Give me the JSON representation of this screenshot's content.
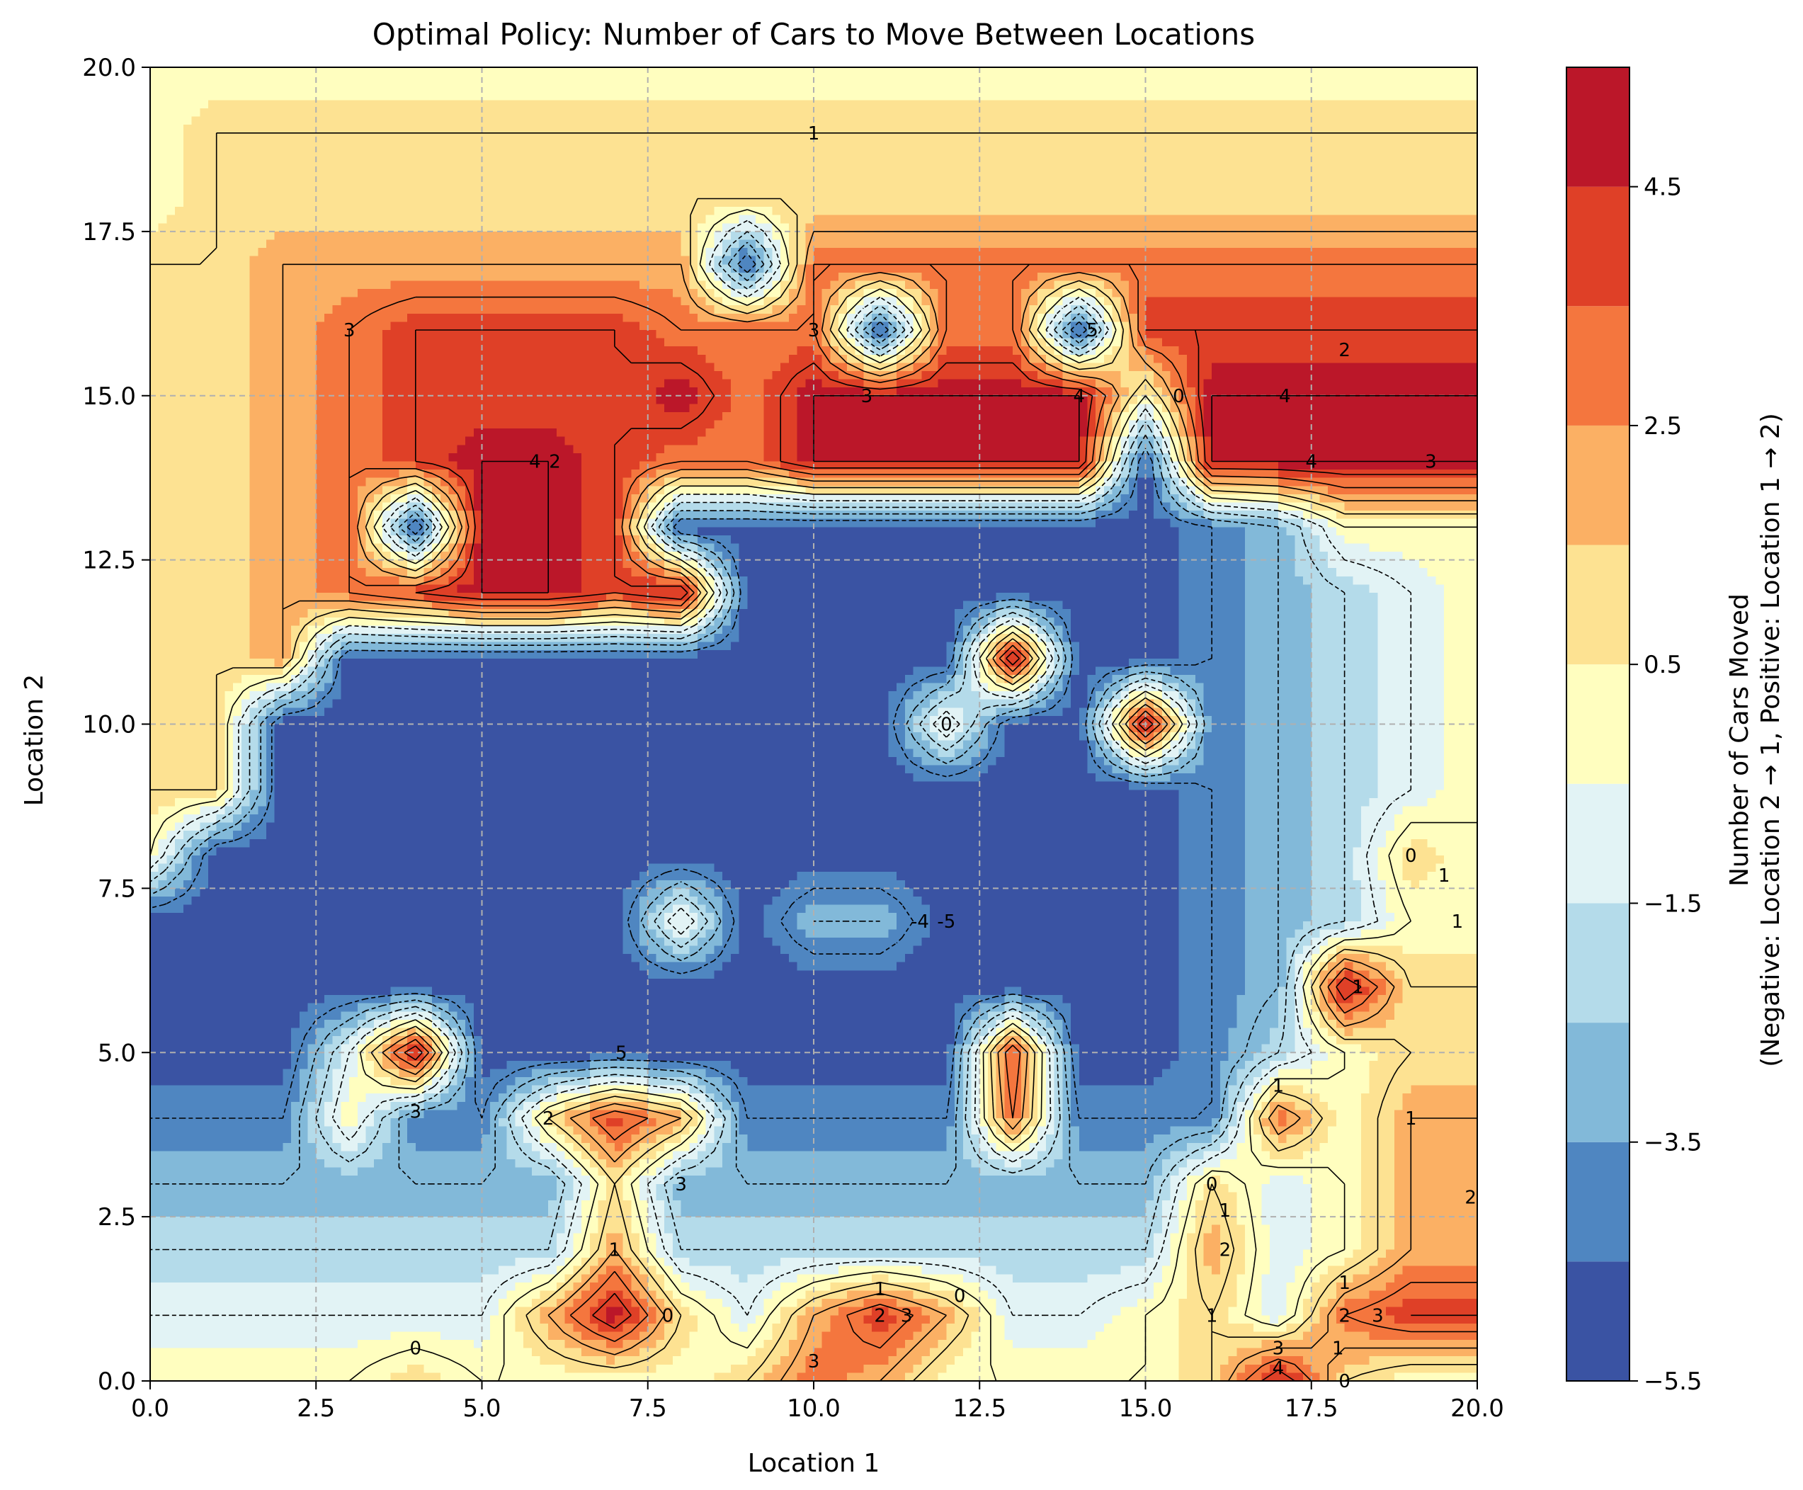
{
  "chart_data": {
    "type": "heatmap",
    "subtype": "filled-contour",
    "title": "Optimal Policy: Number of Cars to Move Between Locations",
    "xlabel": "Location 1",
    "ylabel": "Location 2",
    "xlim": [
      0,
      20
    ],
    "ylim": [
      0,
      20
    ],
    "x_ticks": [
      "0.0",
      "2.5",
      "5.0",
      "7.5",
      "10.0",
      "12.5",
      "15.0",
      "17.5",
      "20.0"
    ],
    "y_ticks": [
      "0.0",
      "2.5",
      "5.0",
      "7.5",
      "10.0",
      "12.5",
      "15.0",
      "17.5",
      "20.0"
    ],
    "grid": true,
    "grid_style": "dashed",
    "colormap": "RdYlBu_r",
    "levels": [
      -5.5,
      -4.5,
      -3.5,
      -2.5,
      -1.5,
      -0.5,
      0.5,
      1.5,
      2.5,
      3.5,
      4.5,
      5.5
    ],
    "level_colors": [
      "#3a53a3",
      "#4f86c1",
      "#82b9d9",
      "#b4dbea",
      "#e2f3f5",
      "#fffebf",
      "#fde292",
      "#fbb064",
      "#f4763e",
      "#df4027",
      "#bb1729"
    ],
    "colorbar": {
      "ticks": [
        "4.5",
        "2.5",
        "0.5",
        "−1.5",
        "−3.5",
        "−5.5"
      ],
      "tick_values": [
        4.5,
        2.5,
        0.5,
        -1.5,
        -3.5,
        -5.5
      ],
      "label_line1": "Number of Cars Moved",
      "label_line2": "(Negative: Location 2 → 1, Positive: Location 1 → 2)"
    },
    "grid_size": 21,
    "z": [
      [
        0,
        0,
        0,
        0,
        0,
        0,
        0,
        0,
        0,
        0,
        0,
        0,
        0,
        0,
        0,
        0,
        0,
        0,
        0,
        0,
        0
      ],
      [
        0,
        0,
        0,
        0,
        0,
        0,
        0,
        0,
        0,
        0,
        0,
        0,
        0,
        0,
        0,
        0,
        0,
        0,
        0,
        0,
        0
      ],
      [
        0,
        0,
        0,
        0,
        0,
        0,
        0,
        0,
        0,
        0,
        0,
        0,
        0,
        0,
        0,
        0,
        0,
        0,
        0,
        0,
        0
      ],
      [
        0,
        0,
        0,
        0,
        0,
        0,
        0,
        0,
        0,
        0,
        0,
        0,
        0,
        0,
        0,
        0,
        0,
        0,
        0,
        0,
        0
      ],
      [
        0,
        0,
        0,
        0,
        0,
        0,
        0,
        0,
        0,
        0,
        0,
        0,
        0,
        0,
        0,
        0,
        0,
        0,
        0,
        0,
        0
      ],
      [
        0,
        0,
        0,
        0,
        0,
        0,
        0,
        0,
        0,
        0,
        0,
        0,
        0,
        0,
        0,
        0,
        0,
        0,
        0,
        0,
        0
      ],
      [
        0,
        0,
        0,
        0,
        0,
        0,
        0,
        0,
        0,
        0,
        0,
        0,
        0,
        0,
        0,
        0,
        0,
        0,
        0,
        0,
        0
      ],
      [
        0,
        0,
        0,
        0,
        0,
        0,
        0,
        0,
        0,
        0,
        0,
        0,
        0,
        0,
        0,
        0,
        0,
        0,
        0,
        0,
        0
      ],
      [
        0,
        0,
        0,
        0,
        0,
        0,
        0,
        0,
        0,
        0,
        0,
        0,
        0,
        0,
        0,
        0,
        0,
        0,
        0,
        0,
        0
      ],
      [
        0,
        0,
        0,
        0,
        0,
        0,
        0,
        0,
        0,
        0,
        0,
        0,
        0,
        0,
        0,
        0,
        0,
        0,
        0,
        0,
        0
      ],
      [
        0,
        0,
        0,
        0,
        0,
        0,
        0,
        0,
        0,
        0,
        0,
        0,
        0,
        0,
        0,
        0,
        0,
        0,
        0,
        0,
        0
      ],
      [
        0,
        0,
        0,
        0,
        0,
        0,
        0,
        0,
        0,
        0,
        0,
        0,
        0,
        0,
        0,
        0,
        0,
        0,
        0,
        0,
        0
      ],
      [
        0,
        0,
        0,
        0,
        0,
        0,
        0,
        0,
        0,
        0,
        0,
        0,
        0,
        0,
        0,
        0,
        0,
        0,
        0,
        0,
        0
      ],
      [
        0,
        0,
        0,
        0,
        0,
        0,
        0,
        0,
        0,
        0,
        0,
        0,
        0,
        0,
        0,
        0,
        0,
        0,
        0,
        0,
        0
      ],
      [
        0,
        0,
        0,
        0,
        0,
        0,
        0,
        0,
        0,
        0,
        0,
        0,
        0,
        0,
        0,
        0,
        0,
        0,
        0,
        0,
        0
      ],
      [
        0,
        0,
        0,
        0,
        0,
        0,
        0,
        0,
        0,
        0,
        0,
        0,
        0,
        0,
        0,
        0,
        0,
        0,
        0,
        0,
        0
      ],
      [
        0,
        0,
        0,
        0,
        0,
        0,
        0,
        0,
        0,
        0,
        0,
        0,
        0,
        0,
        0,
        0,
        0,
        0,
        0,
        0,
        0
      ],
      [
        0,
        0,
        0,
        0,
        0,
        0,
        0,
        0,
        0,
        0,
        0,
        0,
        0,
        0,
        0,
        0,
        0,
        0,
        0,
        0,
        0
      ],
      [
        0,
        0,
        0,
        0,
        0,
        0,
        0,
        0,
        0,
        0,
        0,
        0,
        0,
        0,
        0,
        0,
        0,
        0,
        0,
        0,
        0
      ],
      [
        0,
        0,
        0,
        0,
        0,
        0,
        0,
        0,
        0,
        0,
        0,
        0,
        0,
        0,
        0,
        0,
        0,
        0,
        0,
        0,
        0
      ],
      [
        0,
        0,
        0,
        0,
        0,
        0,
        0,
        0,
        0,
        0,
        0,
        0,
        0,
        0,
        0,
        0,
        0,
        0,
        0,
        0,
        0
      ]
    ],
    "overrides": {
      "rows": [
        [
          0,
          20,
          0,
          0
        ],
        [
          1,
          20,
          0,
          0
        ],
        [
          2,
          20,
          0,
          0
        ],
        [
          3,
          20,
          0,
          0
        ]
      ]
    },
    "contour_labels": [
      {
        "x": 10.0,
        "y": 19.0,
        "text": "1"
      },
      {
        "x": 3.0,
        "y": 16.0,
        "text": "3"
      },
      {
        "x": 10.0,
        "y": 16.0,
        "text": "3"
      },
      {
        "x": 10.8,
        "y": 15.0,
        "text": "3"
      },
      {
        "x": 6.1,
        "y": 14.0,
        "text": "2"
      },
      {
        "x": 5.8,
        "y": 14.0,
        "text": "4"
      },
      {
        "x": 14.0,
        "y": 15.0,
        "text": "4"
      },
      {
        "x": 15.5,
        "y": 15.0,
        "text": "0"
      },
      {
        "x": 17.1,
        "y": 15.0,
        "text": "4"
      },
      {
        "x": 17.5,
        "y": 14.0,
        "text": "4"
      },
      {
        "x": 18.0,
        "y": 15.7,
        "text": "2"
      },
      {
        "x": 19.3,
        "y": 14.0,
        "text": "3"
      },
      {
        "x": 19.0,
        "y": 8.0,
        "text": "0"
      },
      {
        "x": 19.5,
        "y": 7.7,
        "text": "1"
      },
      {
        "x": 19.7,
        "y": 7.0,
        "text": "1"
      },
      {
        "x": 7.1,
        "y": 5.0,
        "text": "5"
      },
      {
        "x": 6.0,
        "y": 4.0,
        "text": "2"
      },
      {
        "x": 4.0,
        "y": 4.1,
        "text": "3"
      },
      {
        "x": 8.0,
        "y": 3.0,
        "text": "3"
      },
      {
        "x": 7.0,
        "y": 2.0,
        "text": "1"
      },
      {
        "x": 7.8,
        "y": 1.0,
        "text": "0"
      },
      {
        "x": 4.0,
        "y": 0.5,
        "text": "0"
      },
      {
        "x": 10.0,
        "y": 0.3,
        "text": "3"
      },
      {
        "x": 11.0,
        "y": 1.4,
        "text": "1"
      },
      {
        "x": 11.0,
        "y": 1.0,
        "text": "2"
      },
      {
        "x": 11.4,
        "y": 1.0,
        "text": "3"
      },
      {
        "x": 12.2,
        "y": 1.3,
        "text": "0"
      },
      {
        "x": 16.0,
        "y": 3.0,
        "text": "0"
      },
      {
        "x": 16.2,
        "y": 2.6,
        "text": "1"
      },
      {
        "x": 16.2,
        "y": 2.0,
        "text": "2"
      },
      {
        "x": 16.0,
        "y": 1.0,
        "text": "1"
      },
      {
        "x": 17.0,
        "y": 4.5,
        "text": "1"
      },
      {
        "x": 18.2,
        "y": 6.0,
        "text": "1"
      },
      {
        "x": 19.0,
        "y": 4.0,
        "text": "1"
      },
      {
        "x": 19.9,
        "y": 2.8,
        "text": "2"
      },
      {
        "x": 18.0,
        "y": 1.5,
        "text": "1"
      },
      {
        "x": 18.0,
        "y": 1.0,
        "text": "2"
      },
      {
        "x": 18.5,
        "y": 1.0,
        "text": "3"
      },
      {
        "x": 17.9,
        "y": 0.5,
        "text": "1"
      },
      {
        "x": 17.0,
        "y": 0.5,
        "text": "3"
      },
      {
        "x": 17.0,
        "y": 0.2,
        "text": "4"
      },
      {
        "x": 18.0,
        "y": 0.0,
        "text": "0"
      },
      {
        "x": 12.0,
        "y": 10.0,
        "text": "0"
      },
      {
        "x": 14.2,
        "y": 16.0,
        "text": "5"
      },
      {
        "x": 11.6,
        "y": 7.0,
        "text": "-4"
      },
      {
        "x": 12.0,
        "y": 7.0,
        "text": "-5"
      }
    ]
  }
}
